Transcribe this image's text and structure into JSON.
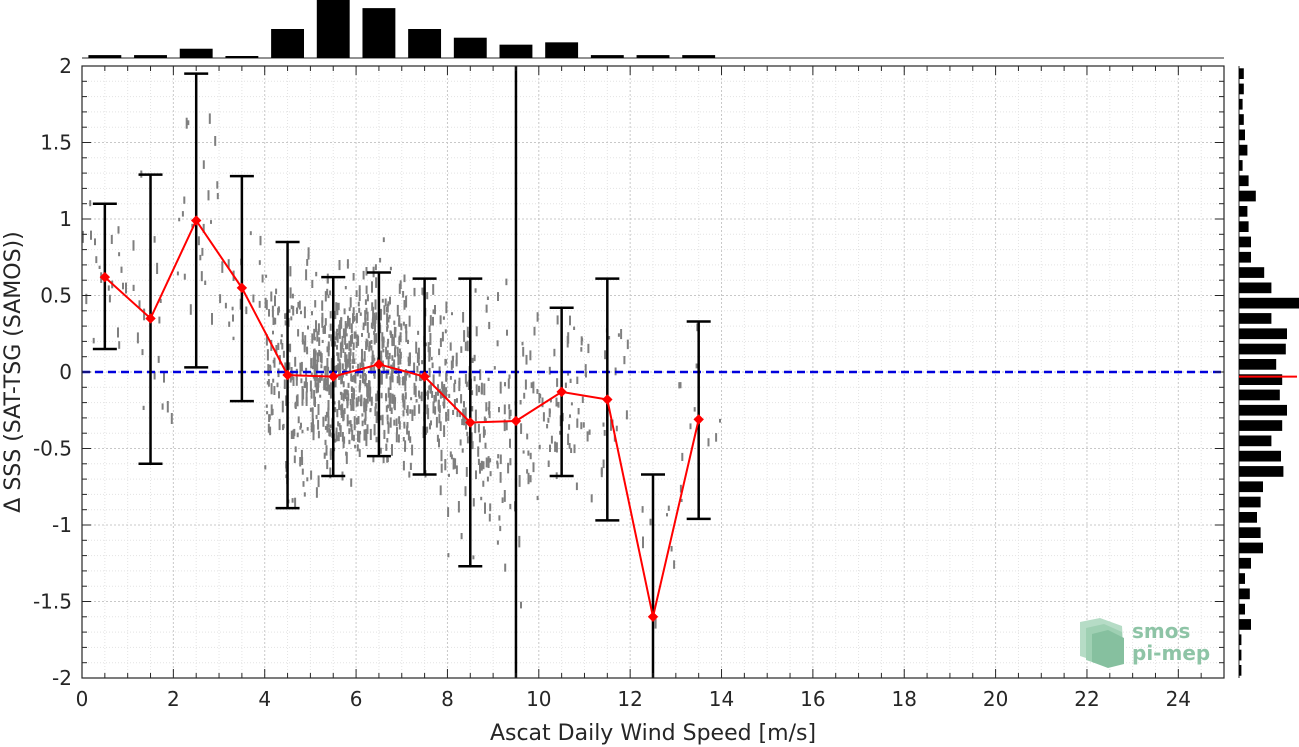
{
  "chart_data": {
    "type": "scatter",
    "xlabel": "Ascat Daily Wind Speed [m/s]",
    "ylabel": "Δ SSS (SAT-TSG (SAMOS))",
    "xlim": [
      0,
      25
    ],
    "ylim": [
      -2,
      2
    ],
    "xticks": [
      0,
      2,
      4,
      6,
      8,
      10,
      12,
      14,
      16,
      18,
      20,
      22,
      24
    ],
    "yticks": [
      -2,
      -1.5,
      -1,
      -0.5,
      0,
      0.5,
      1,
      1.5,
      2
    ],
    "grid": true,
    "reference_line": {
      "y": 0,
      "style": "dashed",
      "color": "#0000dd"
    },
    "vertical_line": {
      "x": 9.5,
      "color": "#000000"
    },
    "binned_mean": {
      "color": "#ff0000",
      "points": [
        {
          "x": 0.5,
          "mean": 0.62,
          "lower": 0.15,
          "upper": 1.1
        },
        {
          "x": 1.5,
          "mean": 0.35,
          "lower": -0.6,
          "upper": 1.29
        },
        {
          "x": 2.5,
          "mean": 0.99,
          "lower": 0.03,
          "upper": 1.95
        },
        {
          "x": 3.5,
          "mean": 0.55,
          "lower": -0.19,
          "upper": 1.28
        },
        {
          "x": 4.5,
          "mean": -0.02,
          "lower": -0.89,
          "upper": 0.85
        },
        {
          "x": 5.5,
          "mean": -0.03,
          "lower": -0.68,
          "upper": 0.62
        },
        {
          "x": 6.5,
          "mean": 0.05,
          "lower": -0.55,
          "upper": 0.65
        },
        {
          "x": 7.5,
          "mean": -0.03,
          "lower": -0.67,
          "upper": 0.61
        },
        {
          "x": 8.5,
          "mean": -0.33,
          "lower": -1.27,
          "upper": 0.61
        },
        {
          "x": 9.5,
          "mean": -0.32,
          "lower": null,
          "upper": null
        },
        {
          "x": 10.5,
          "mean": -0.13,
          "lower": -0.68,
          "upper": 0.42
        },
        {
          "x": 11.5,
          "mean": -0.18,
          "lower": -0.97,
          "upper": 0.61
        },
        {
          "x": 12.5,
          "mean": -1.6,
          "lower": -2.0,
          "upper": -0.67
        },
        {
          "x": 13.5,
          "mean": -0.31,
          "lower": -0.96,
          "upper": 0.33
        }
      ]
    },
    "scatter_clusters": [
      {
        "x": 0.5,
        "center": 0.6,
        "spread": 0.5,
        "count": 20
      },
      {
        "x": 1.5,
        "center": 0.35,
        "spread": 0.75,
        "count": 18
      },
      {
        "x": 2.5,
        "center": 1.0,
        "spread": 0.7,
        "count": 24
      },
      {
        "x": 3.5,
        "center": 0.55,
        "spread": 0.55,
        "count": 18
      },
      {
        "x": 4.5,
        "center": 0.0,
        "spread": 0.75,
        "count": 140
      },
      {
        "x": 5.5,
        "center": -0.03,
        "spread": 0.6,
        "count": 300
      },
      {
        "x": 6.5,
        "center": 0.05,
        "spread": 0.55,
        "count": 260
      },
      {
        "x": 7.5,
        "center": -0.03,
        "spread": 0.6,
        "count": 150
      },
      {
        "x": 8.5,
        "center": -0.3,
        "spread": 0.75,
        "count": 110
      },
      {
        "x": 9.5,
        "center": -0.3,
        "spread": 0.8,
        "count": 60
      },
      {
        "x": 10.5,
        "center": -0.13,
        "spread": 0.55,
        "count": 50
      },
      {
        "x": 11.5,
        "center": -0.18,
        "spread": 0.65,
        "count": 25
      },
      {
        "x": 12.5,
        "center": -1.2,
        "spread": 0.5,
        "count": 8
      },
      {
        "x": 13.5,
        "center": -0.3,
        "spread": 0.6,
        "count": 12
      }
    ],
    "top_histogram": {
      "bin_centers": [
        0.5,
        1.5,
        2.5,
        3.5,
        4.5,
        5.5,
        6.5,
        7.5,
        8.5,
        9.5,
        10.5,
        11.5,
        12.5,
        13.5
      ],
      "values": [
        0.05,
        0.05,
        0.16,
        0.03,
        0.5,
        1.0,
        0.86,
        0.5,
        0.35,
        0.23,
        0.27,
        0.05,
        0.05,
        0.05
      ]
    },
    "right_histogram": {
      "bin_centers": [
        1.95,
        1.85,
        1.75,
        1.65,
        1.55,
        1.45,
        1.35,
        1.25,
        1.15,
        1.05,
        0.95,
        0.85,
        0.75,
        0.65,
        0.55,
        0.45,
        0.35,
        0.25,
        0.15,
        0.05,
        -0.05,
        -0.15,
        -0.25,
        -0.35,
        -0.45,
        -0.55,
        -0.65,
        -0.75,
        -0.85,
        -0.95,
        -1.05,
        -1.15,
        -1.25,
        -1.35,
        -1.45,
        -1.55,
        -1.65,
        -1.75,
        -1.85,
        -1.95
      ],
      "values": [
        0.08,
        0.08,
        0.06,
        0.08,
        0.1,
        0.14,
        0.06,
        0.16,
        0.28,
        0.14,
        0.16,
        0.2,
        0.2,
        0.42,
        0.54,
        1.0,
        0.54,
        0.8,
        0.78,
        0.62,
        0.72,
        0.68,
        0.8,
        0.72,
        0.54,
        0.7,
        0.74,
        0.4,
        0.36,
        0.3,
        0.36,
        0.4,
        0.2,
        0.1,
        0.18,
        0.1,
        0.2,
        0.04,
        0.04,
        0.04
      ],
      "median_marker": -0.03
    }
  },
  "logo": {
    "line1": "smos",
    "line2": "pi-mep",
    "color": "#8ec4a6"
  }
}
